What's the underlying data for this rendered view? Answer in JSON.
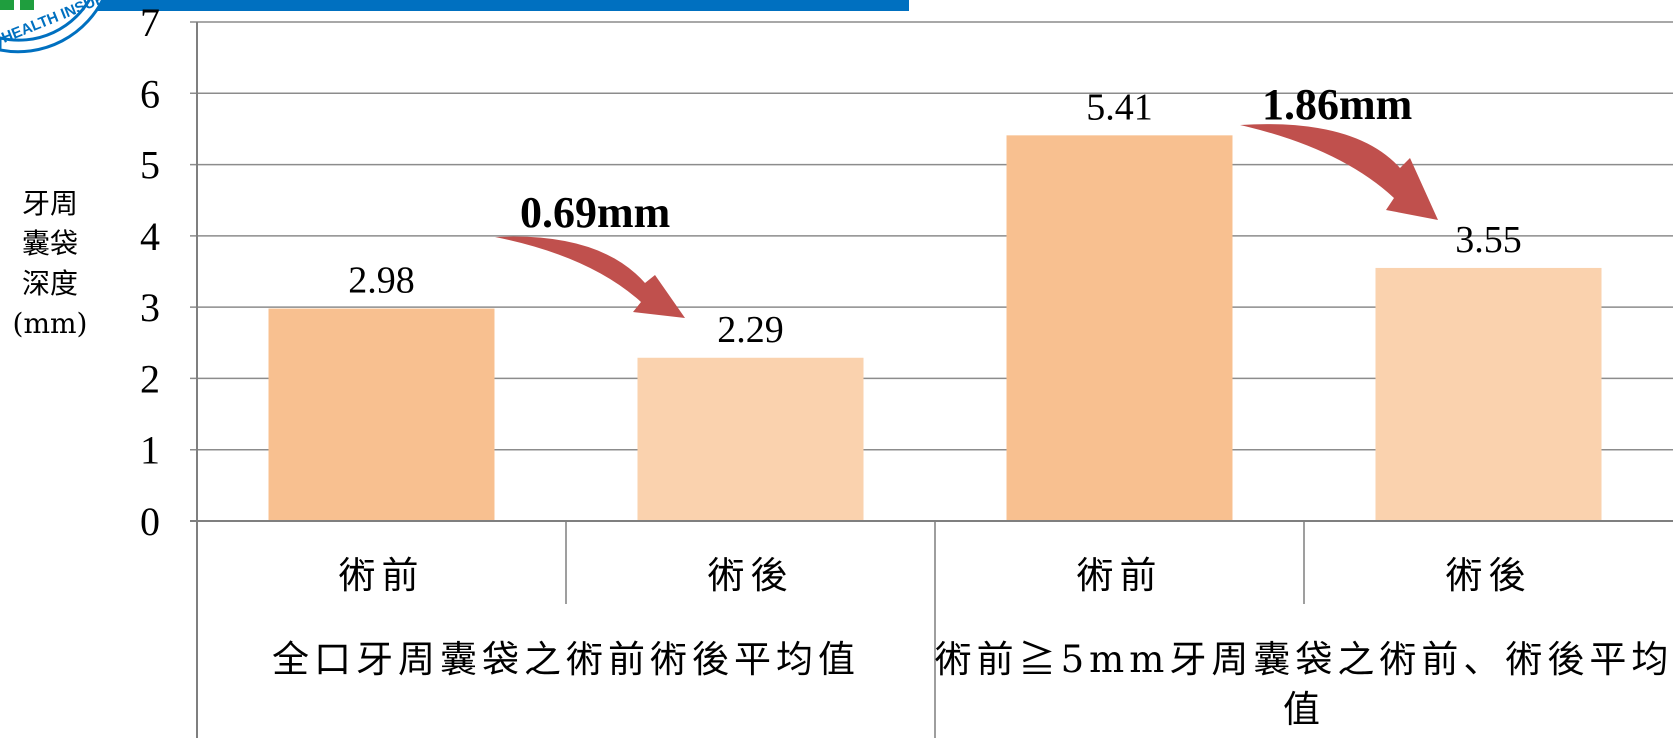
{
  "chart_data": {
    "type": "bar",
    "ylabel": [
      "牙周",
      "囊袋",
      "深度",
      "(mm)"
    ],
    "ylim": [
      0,
      7
    ],
    "yticks": [
      0,
      1,
      2,
      3,
      4,
      5,
      6,
      7
    ],
    "grid": true,
    "categories": [
      "術前",
      "術後",
      "術前",
      "術後"
    ],
    "groups": [
      {
        "label": [
          "全口牙周囊袋之術前術後平均值"
        ]
      },
      {
        "label": [
          "術前≧5mm牙周囊袋之術前、術後平均",
          "值"
        ]
      }
    ],
    "values": [
      2.98,
      2.29,
      5.41,
      3.55
    ],
    "data_labels": [
      "2.98",
      "2.29",
      "5.41",
      "3.55"
    ],
    "bar_colors": [
      "#F8C090",
      "#FAD2AE",
      "#F8C090",
      "#FAD2AE"
    ],
    "annotations": [
      "0.69mm",
      "1.86mm"
    ]
  },
  "colors": {
    "arrow": "#C0504D",
    "header_bar": "#0070C0",
    "logo_green": "#1F9E3E"
  },
  "logo": {
    "text": "HEALTH INSURA"
  }
}
